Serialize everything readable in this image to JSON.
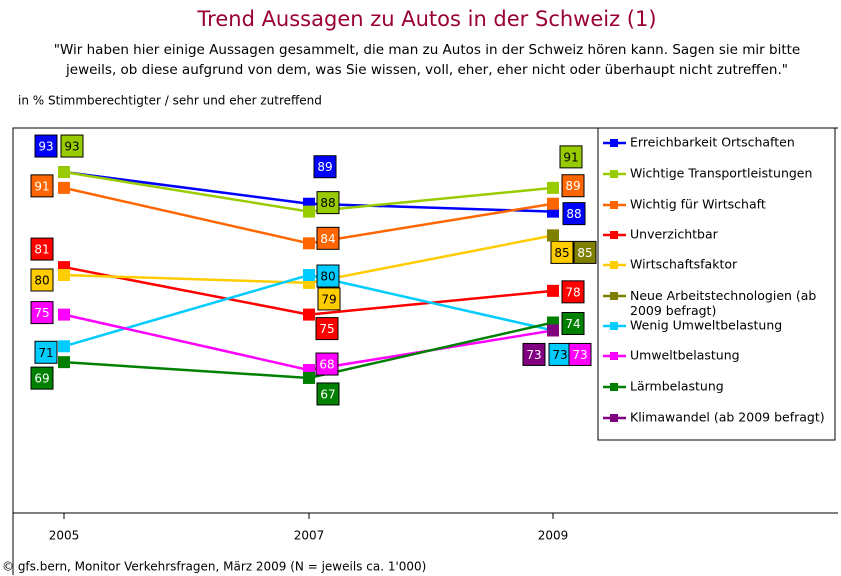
{
  "chart_data": {
    "type": "line",
    "title": "Trend Aussagen zu Autos in der Schweiz (1)",
    "title_color": "#990033",
    "subtitle": [
      "\"Wir haben hier einige Aussagen gesammelt, die man zu Autos in der Schweiz hören kann. Sagen sie mir bitte",
      "jeweils, ob diese aufgrund von dem, was Sie wissen, voll, eher, eher nicht oder überhaupt nicht zutreffen.\""
    ],
    "note": "in % Stimmberechtigter / sehr und eher zutreffend",
    "source": "© gfs.bern, Monitor Verkehrsfragen, März 2009 (N = jeweils ca. 1'000)",
    "categories": [
      "2005",
      "2007",
      "2009"
    ],
    "ylim": [
      50,
      100
    ],
    "legend": "right",
    "series": [
      {
        "name": "Erreichbarkeit Ortschaften",
        "color": "#0000ff",
        "values": [
          93,
          89,
          88
        ]
      },
      {
        "name": "Wichtige Transportleistungen",
        "color": "#99cc00",
        "values": [
          93,
          88,
          91
        ]
      },
      {
        "name": "Wichtig für Wirtschaft",
        "color": "#ff6600",
        "values": [
          91,
          84,
          89
        ]
      },
      {
        "name": "Unverzichtbar",
        "color": "#ff0000",
        "values": [
          81,
          75,
          78
        ]
      },
      {
        "name": "Wirtschaftsfaktor",
        "color": "#ffcc00",
        "values": [
          80,
          79,
          85
        ]
      },
      {
        "name": "Neue Arbeitstechnologien (ab 2009 befragt)",
        "color": "#808000",
        "values": [
          null,
          null,
          85
        ]
      },
      {
        "name": "Wenig Umweltbelastung",
        "color": "#00ccff",
        "values": [
          71,
          80,
          73
        ]
      },
      {
        "name": "Umweltbelastung",
        "color": "#ff00ff",
        "values": [
          75,
          68,
          73
        ]
      },
      {
        "name": "Lärmbelastung",
        "color": "#008000",
        "values": [
          69,
          67,
          74
        ]
      },
      {
        "name": "Klimawandel (ab 2009 befragt)",
        "color": "#800080",
        "values": [
          null,
          null,
          73
        ]
      }
    ]
  }
}
